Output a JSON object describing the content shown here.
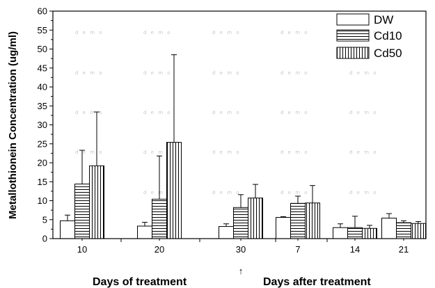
{
  "chart_data": {
    "type": "bar",
    "title": "",
    "ylabel": "Metallothionein Concentration (ug/ml)",
    "ylim": [
      0,
      60
    ],
    "yticks": [
      "0",
      "5",
      "10",
      "15",
      "20",
      "25",
      "30",
      "35",
      "40",
      "45",
      "50",
      "55",
      "60"
    ],
    "categories": [
      "10",
      "20",
      "30",
      "7",
      "14",
      "21"
    ],
    "group_labels": [
      "Days of treatment",
      "Days after treatment"
    ],
    "marker": "↑",
    "legend_position": "top-right",
    "grid": false,
    "series": [
      {
        "name": "DW",
        "pattern": "none",
        "values": [
          4.7,
          3.3,
          3.2,
          5.6,
          2.9,
          5.4
        ],
        "errors": [
          1.5,
          1.0,
          0.7,
          0.2,
          1.0,
          1.2
        ]
      },
      {
        "name": "Cd10",
        "pattern": "horizontal",
        "values": [
          14.4,
          10.4,
          8.2,
          9.3,
          2.9,
          4.2
        ],
        "errors": [
          8.9,
          11.4,
          3.4,
          1.9,
          3.0,
          0.5
        ]
      },
      {
        "name": "Cd50",
        "pattern": "vertical",
        "values": [
          19.2,
          25.4,
          10.7,
          9.4,
          2.7,
          4.0
        ],
        "errors": [
          14.2,
          23.1,
          3.6,
          4.6,
          0.8,
          0.5
        ]
      }
    ]
  },
  "watermark_text": "d e m o"
}
